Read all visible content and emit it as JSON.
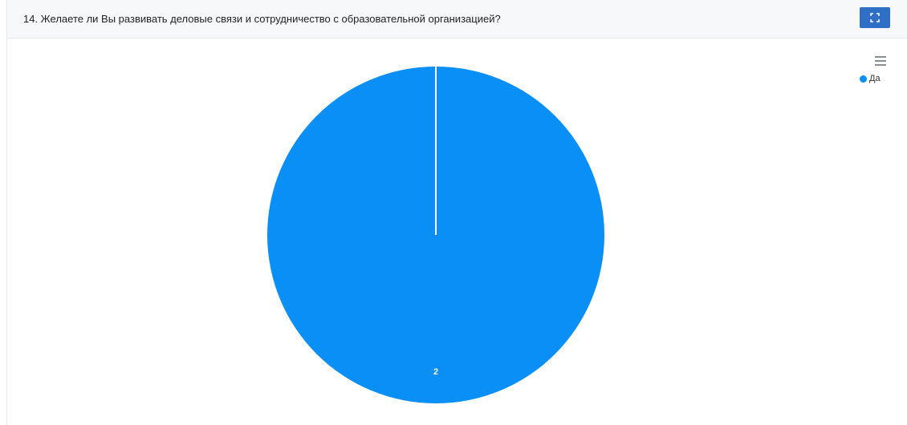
{
  "question": {
    "title": "14. Желаете ли Вы развивать деловые связи и сотрудничество с образовательной организацией?"
  },
  "toolbar": {
    "expand_icon": "expand-icon",
    "menu_icon": "hamburger-menu-icon"
  },
  "colors": {
    "accent": "#2f6fc6",
    "slice": "#0a8ff7"
  },
  "chart_data": {
    "type": "pie",
    "categories": [
      "Да"
    ],
    "values": [
      2
    ],
    "data_labels": [
      "2"
    ],
    "legend": {
      "position": "top-right",
      "entries": [
        "Да"
      ]
    },
    "title": "",
    "slice_colors": [
      "#0a8ff7"
    ]
  }
}
